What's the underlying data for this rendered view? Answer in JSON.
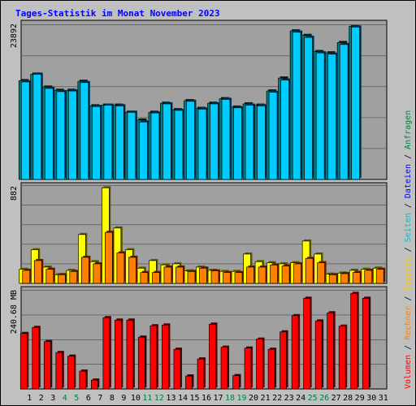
{
  "title": "Tages-Statistik im Monat November 2023",
  "colors": {
    "background": "#c0c0c0",
    "plot_bg": "#a0a0a0",
    "title": "#0000ff",
    "anfragen": "#008040",
    "dateien": "#0000ff",
    "seiten": "#00c0c0",
    "besuche": "#ffff00",
    "rechner": "#ff8000",
    "volumen": "#ff0000",
    "day_weekend": "#008040",
    "day_normal": "#000000"
  },
  "chart_data": [
    {
      "type": "bar",
      "max_label": "23892",
      "ymax": 23892,
      "series": [
        {
          "name": "Anfragen",
          "color": "#008080",
          "values": [
            15300,
            16300,
            14300,
            13800,
            13800,
            15200,
            11400,
            11500,
            11500,
            10400,
            9200,
            10400,
            11800,
            10800,
            12200,
            11000,
            11800,
            12500,
            11200,
            11700,
            11500,
            13700,
            15700,
            23000,
            22300,
            19800,
            19600,
            21200,
            23700,
            0,
            0
          ]
        },
        {
          "name": "Dateien",
          "color": "#00ccff",
          "values": [
            15100,
            16300,
            14100,
            13600,
            13700,
            15000,
            11300,
            11500,
            11400,
            10400,
            8900,
            10300,
            11700,
            10700,
            12100,
            10900,
            11700,
            12400,
            11100,
            11500,
            11400,
            13500,
            15400,
            22800,
            22000,
            19600,
            19400,
            20900,
            23600,
            0,
            0
          ]
        },
        {
          "name": "Seiten",
          "color": "#00ffff",
          "values": [
            0,
            0,
            0,
            0,
            0,
            0,
            0,
            0,
            0,
            0,
            0,
            0,
            0,
            0,
            0,
            0,
            0,
            0,
            0,
            0,
            0,
            0,
            0,
            0,
            0,
            0,
            0,
            0,
            0,
            0,
            0
          ]
        }
      ]
    },
    {
      "type": "bar",
      "max_label": "882",
      "ymax": 882,
      "series": [
        {
          "name": "Besuche",
          "color": "#ffff00",
          "values": [
            130,
            310,
            150,
            80,
            120,
            450,
            200,
            880,
            510,
            310,
            140,
            210,
            170,
            180,
            115,
            150,
            120,
            110,
            110,
            270,
            200,
            190,
            180,
            190,
            390,
            270,
            85,
            95,
            120,
            130,
            140
          ]
        },
        {
          "name": "Rechner",
          "color": "#ff8000",
          "values": [
            120,
            210,
            130,
            80,
            110,
            240,
            180,
            470,
            280,
            240,
            100,
            100,
            150,
            150,
            110,
            140,
            115,
            100,
            100,
            150,
            150,
            170,
            160,
            180,
            230,
            190,
            80,
            90,
            100,
            120,
            130
          ]
        }
      ]
    },
    {
      "type": "bar",
      "max_label": "240.68 MB",
      "ymax": 240.68,
      "series": [
        {
          "name": "Volumen",
          "color": "#ff0000",
          "values": [
            137,
            152,
            117,
            90,
            81,
            44,
            22,
            176,
            170,
            170,
            128,
            156,
            158,
            98,
            32,
            74,
            160,
            103,
            33,
            101,
            123,
            98,
            141,
            181,
            224,
            168,
            188,
            155,
            236,
            224,
            0
          ]
        }
      ]
    }
  ],
  "days": [
    "1",
    "2",
    "3",
    "4",
    "5",
    "6",
    "7",
    "8",
    "9",
    "10",
    "11",
    "12",
    "13",
    "14",
    "15",
    "16",
    "17",
    "18",
    "19",
    "20",
    "21",
    "22",
    "23",
    "24",
    "25",
    "26",
    "27",
    "28",
    "29",
    "30",
    "31"
  ],
  "weekend_days": [
    4,
    5,
    11,
    12,
    18,
    19,
    25,
    26
  ],
  "right_labels": [
    {
      "text": "Volumen",
      "color": "#ff0000"
    },
    {
      "text": " / ",
      "color": "#000000"
    },
    {
      "text": "Rechner",
      "color": "#ff8000"
    },
    {
      "text": " / ",
      "color": "#000000"
    },
    {
      "text": "Besuche",
      "color": "#ffcc00"
    },
    {
      "text": " / ",
      "color": "#000000"
    },
    {
      "text": "Seiten",
      "color": "#00c0c0"
    },
    {
      "text": " / ",
      "color": "#000000"
    },
    {
      "text": "Dateien",
      "color": "#0000ff"
    },
    {
      "text": " / ",
      "color": "#000000"
    },
    {
      "text": "Anfragen",
      "color": "#008040"
    }
  ]
}
